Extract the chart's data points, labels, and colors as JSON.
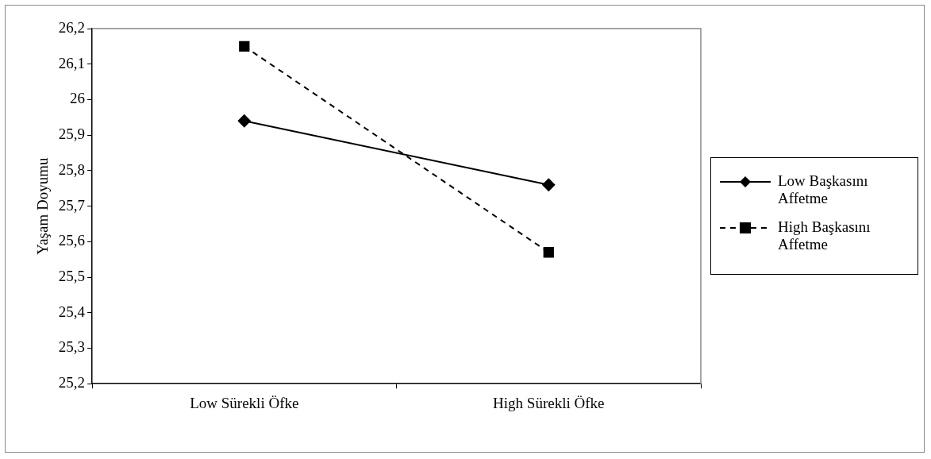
{
  "chart_data": {
    "type": "line",
    "ylabel": "Yaşam Doyumu",
    "categories": [
      "Low Sürekli Öfke",
      "High Sürekli Öfke"
    ],
    "series": [
      {
        "name": "Low Başkasını Affetme",
        "color": "#000000",
        "values": [
          25.94,
          25.76
        ],
        "marker": "diamond",
        "line_style": "solid"
      },
      {
        "name": "High Başkasını Affetme",
        "color": "#000000",
        "values": [
          26.15,
          25.57
        ],
        "marker": "square",
        "line_style": "dashed"
      }
    ],
    "ylim": [
      25.2,
      26.2
    ],
    "yticks": [
      {
        "value": 25.2,
        "label": "25,2"
      },
      {
        "value": 25.3,
        "label": "25,3"
      },
      {
        "value": 25.4,
        "label": "25,4"
      },
      {
        "value": 25.5,
        "label": "25,5"
      },
      {
        "value": 25.6,
        "label": "25,6"
      },
      {
        "value": 25.7,
        "label": "25,7"
      },
      {
        "value": 25.8,
        "label": "25,8"
      },
      {
        "value": 25.9,
        "label": "25,9"
      },
      {
        "value": 26,
        "label": "26"
      },
      {
        "value": 26.1,
        "label": "26,1"
      },
      {
        "value": 26.2,
        "label": "26,2"
      }
    ],
    "grid": false,
    "legend": "right"
  }
}
